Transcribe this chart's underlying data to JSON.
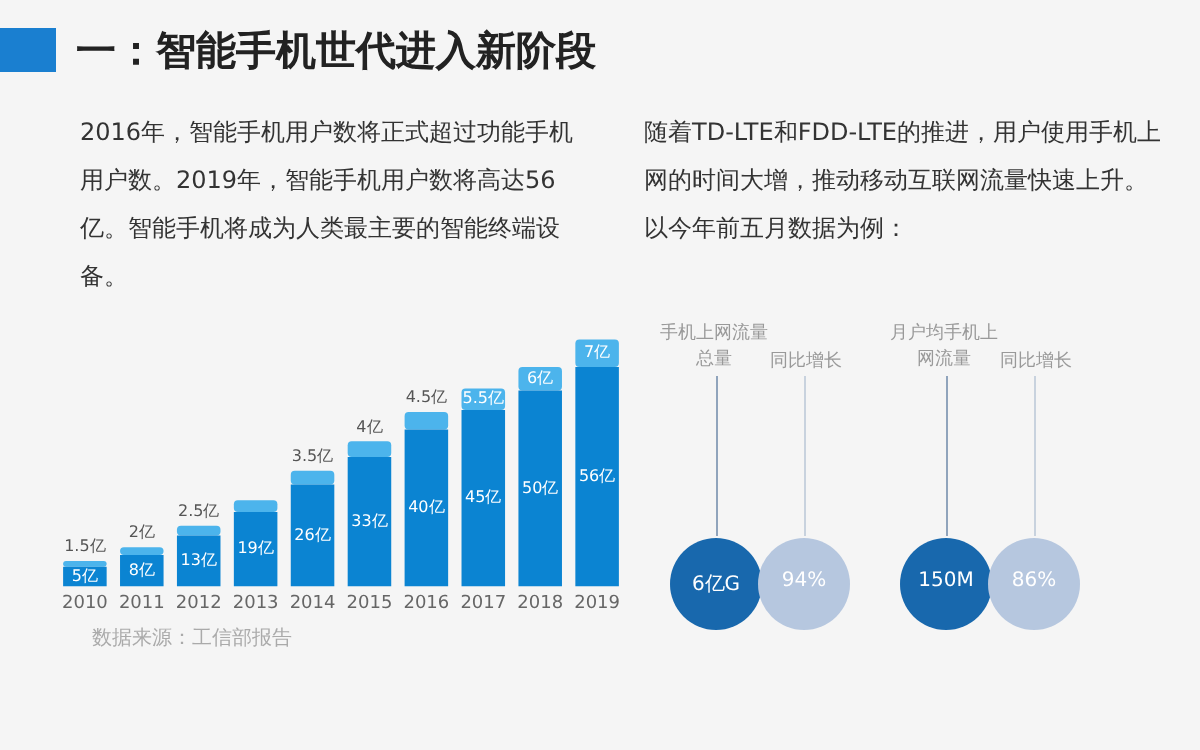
{
  "chart_data": [
    {
      "type": "bar",
      "title": "一：智能手机世代进入新阶段",
      "subtitle": "2016年，智能手机用户数将正式超过功能手机用户数。2019年，智能手机用户数将高达56亿。智能手机将成为人类最主要的智能终端设备。",
      "categories": [
        "2010",
        "2011",
        "2012",
        "2013",
        "2014",
        "2015",
        "2016",
        "2017",
        "2018",
        "2019"
      ],
      "stacked": true,
      "legend": false,
      "grid": false,
      "series": [
        {
          "color": "#0b84d2",
          "values": [
            5,
            8,
            13,
            19,
            26,
            33,
            40,
            45,
            50,
            56
          ],
          "value_labels": [
            "5亿",
            "8亿",
            "13亿",
            "19亿",
            "26亿",
            "33亿",
            "40亿",
            "45亿",
            "50亿",
            "56亿"
          ]
        },
        {
          "color": "#4cb4ec",
          "values": [
            1.5,
            2,
            2.5,
            3,
            3.5,
            4,
            4.5,
            5.5,
            6,
            7
          ],
          "value_labels": [
            "1.5亿",
            "2亿",
            "2.5亿",
            null,
            "3.5亿",
            "4亿",
            "4.5亿",
            "5.5亿",
            "6亿",
            "7亿"
          ]
        }
      ],
      "annotations": [
        "数据来源：工信部报告"
      ]
    },
    {
      "type": "other",
      "subtitle": "随着TD-LTE和FDD-LTE的推进，用户使用手机上网的时间大增，推动移动互联网流量快速上升。以今年前五月数据为例：",
      "annotations": [
        "手机上网流量总量",
        "同比增长",
        "6亿G",
        "94%",
        "月户均手机上网流量",
        "同比增长",
        "150M",
        "86%"
      ]
    }
  ]
}
